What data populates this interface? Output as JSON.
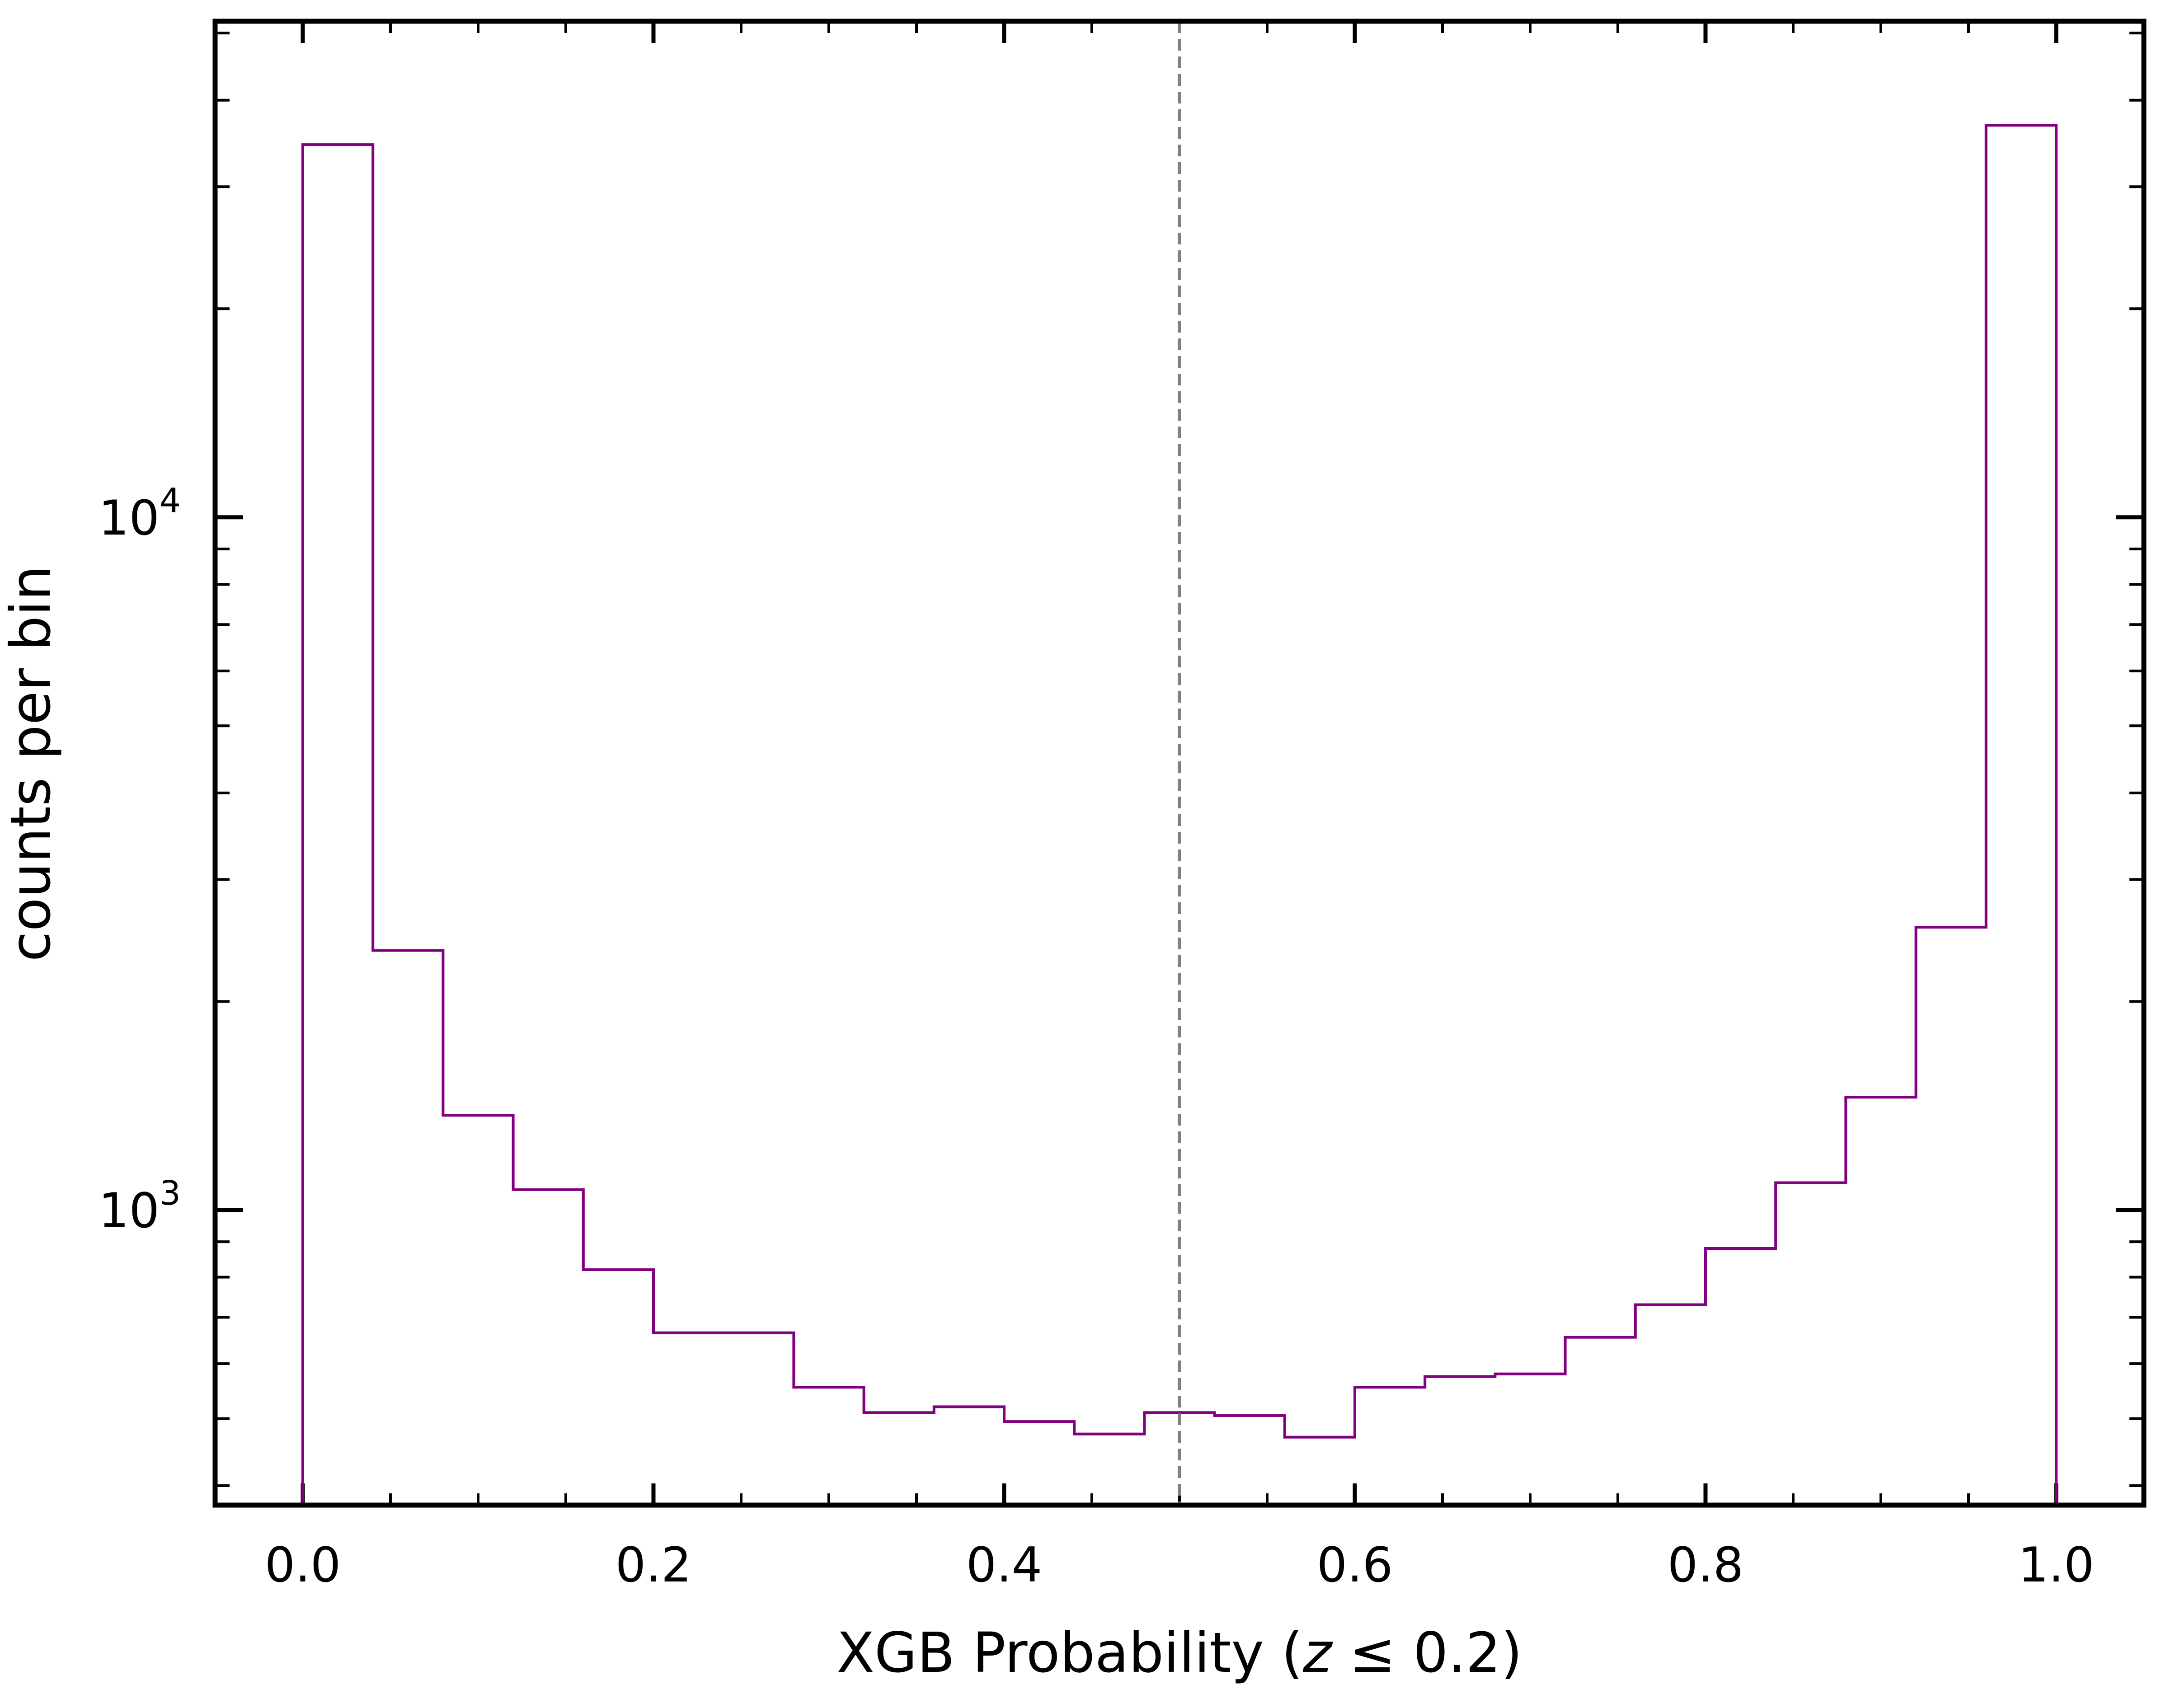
{
  "chart_data": {
    "type": "histogram",
    "title": "",
    "xlabel": "XGB Probability (",
    "xlabel_var": "z",
    "xlabel_rest": " ≤ 0.2)",
    "ylabel": "counts per bin",
    "x_scale": "linear",
    "y_scale": "log",
    "xlim": [
      -0.05,
      1.05
    ],
    "ylim": [
      375,
      52000
    ],
    "x_ticks": [
      0.0,
      0.2,
      0.4,
      0.6,
      0.8,
      1.0
    ],
    "x_tick_labels": [
      "0.0",
      "0.2",
      "0.4",
      "0.6",
      "0.8",
      "1.0"
    ],
    "y_major_ticks": [
      1000,
      10000
    ],
    "y_tick_label_base": "10",
    "y_tick_label_exps": [
      "3",
      "4"
    ],
    "bin_edges": [
      0.0,
      0.04,
      0.08,
      0.12,
      0.16,
      0.2,
      0.24,
      0.28,
      0.32,
      0.36,
      0.4,
      0.44,
      0.48,
      0.52,
      0.56,
      0.6,
      0.64,
      0.68,
      0.72,
      0.76,
      0.8,
      0.84,
      0.88,
      0.92,
      0.96,
      1.0
    ],
    "counts": [
      34500,
      2370,
      1370,
      1070,
      820,
      665,
      665,
      555,
      510,
      520,
      495,
      475,
      510,
      505,
      470,
      555,
      575,
      580,
      655,
      730,
      880,
      1095,
      1455,
      2560,
      36800
    ],
    "threshold_line": {
      "x": 0.5,
      "style": "dashed",
      "color": "#808080"
    },
    "histogram_color": "#800080",
    "grid": false,
    "legend": "none"
  }
}
